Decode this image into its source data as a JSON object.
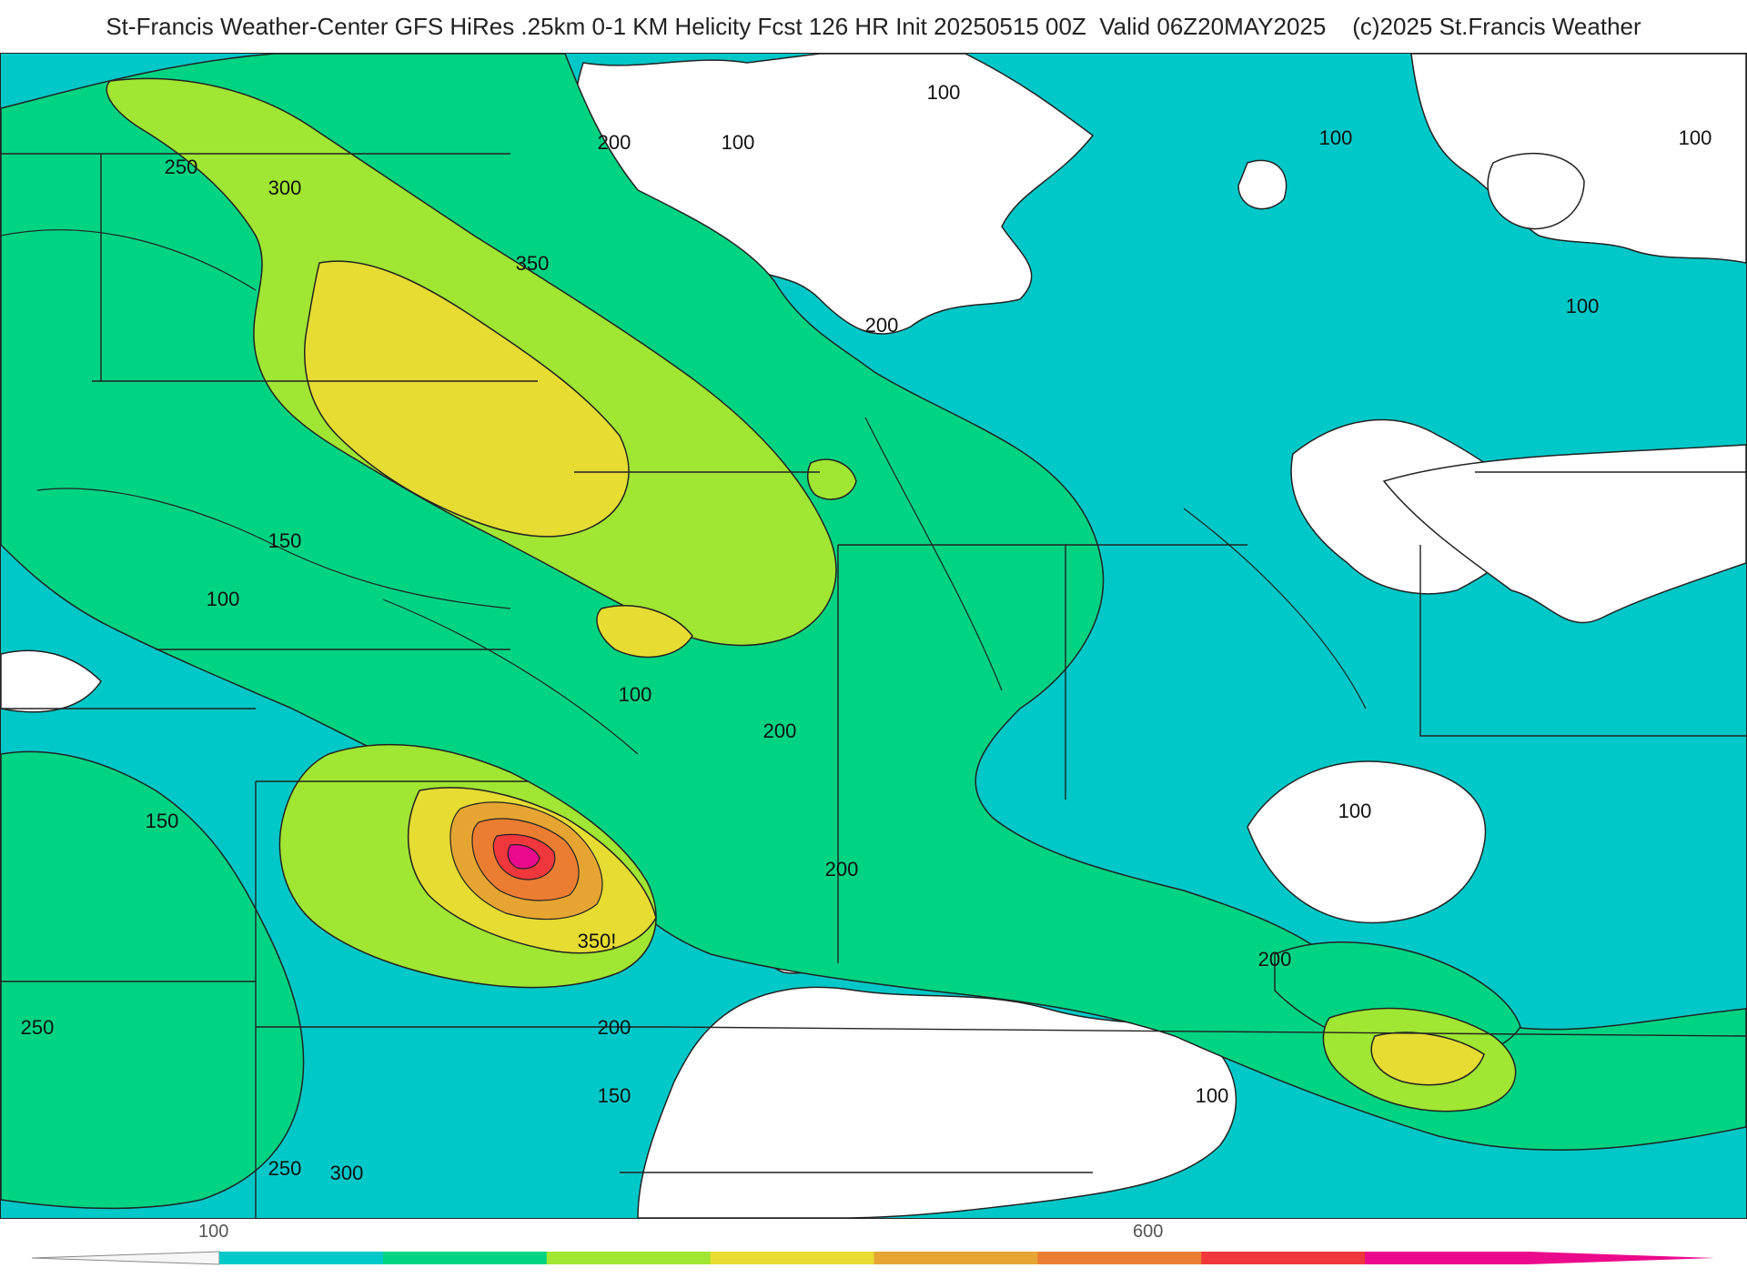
{
  "header": {
    "title": "St-Francis Weather-Center GFS HiRes .25km 0-1 KM Helicity Fcst 126 HR Init 20250515 00Z  Valid 06Z20MAY2025    (c)2025 St.Francis Weather"
  },
  "contour_labels": [
    "100",
    "200",
    "100",
    "250",
    "300",
    "350",
    "100",
    "200",
    "100",
    "100",
    "150",
    "100",
    "100",
    "200",
    "150",
    "200",
    "250",
    "350!",
    "200",
    "150",
    "250",
    "300",
    "200",
    "100",
    "100"
  ],
  "legend": {
    "ticks": [
      "100",
      "600"
    ],
    "colors": [
      "#00c8c8",
      "#00d482",
      "#a0e632",
      "#e6dc32",
      "#e6a532",
      "#eb7d32",
      "#f0373c",
      "#eb0a8c"
    ]
  },
  "palette": {
    "cyan": "#00c8c8",
    "green": "#00d482",
    "lime": "#a0e632",
    "yellow": "#e6dc32",
    "orange": "#e6a532",
    "dark_orange": "#eb7d32",
    "red": "#f0373c",
    "magenta": "#eb0a8c"
  }
}
